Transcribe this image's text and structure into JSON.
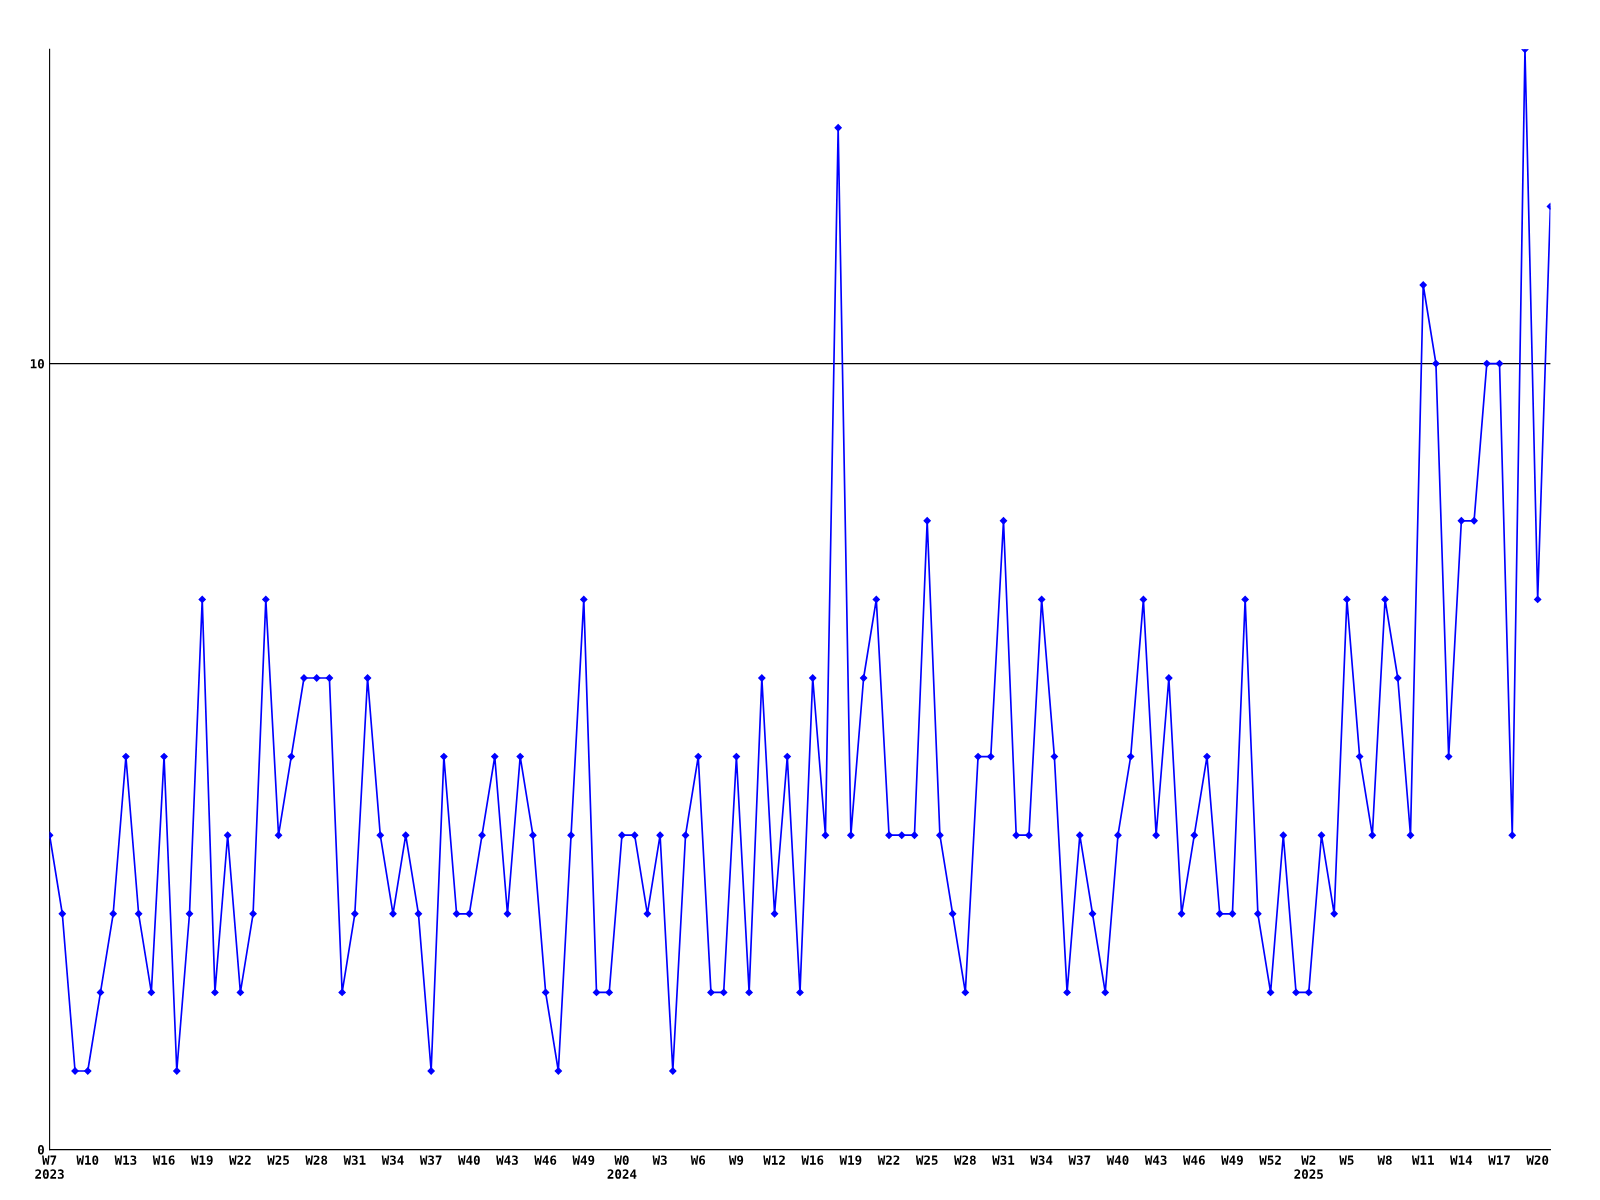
{
  "chart_data": {
    "type": "line",
    "categories": [
      "W7\n2023",
      null,
      null,
      "W10",
      null,
      null,
      "W13",
      null,
      null,
      "W16",
      null,
      null,
      "W19",
      null,
      null,
      "W22",
      null,
      null,
      "W25",
      null,
      null,
      "W28",
      null,
      null,
      "W31",
      null,
      null,
      "W34",
      null,
      null,
      "W37",
      null,
      null,
      "W40",
      null,
      null,
      "W43",
      null,
      null,
      "W46",
      null,
      null,
      "W49",
      null,
      null,
      "W0\n2024",
      null,
      null,
      "W3",
      null,
      null,
      "W6",
      null,
      null,
      "W9",
      null,
      null,
      "W12",
      null,
      null,
      "W16",
      null,
      null,
      "W19",
      null,
      null,
      "W22",
      null,
      null,
      "W25",
      null,
      null,
      "W28",
      null,
      null,
      "W31",
      null,
      null,
      "W34",
      null,
      null,
      "W37",
      null,
      null,
      "W40",
      null,
      null,
      "W43",
      null,
      null,
      "W46",
      null,
      null,
      "W49",
      null,
      null,
      "W52",
      null,
      null,
      "W2\n2025",
      null,
      null,
      "W5",
      null,
      null,
      "W8",
      null,
      null,
      "W11",
      null,
      null,
      "W14",
      null,
      null,
      "W17",
      null,
      null,
      "W20",
      null
    ],
    "series": [
      {
        "color": "#0000ff",
        "values": [
          4,
          3,
          1,
          1,
          2,
          3,
          5,
          3,
          2,
          5,
          1,
          3,
          7,
          2,
          4,
          2,
          3,
          7,
          4,
          5,
          6,
          6,
          6,
          2,
          3,
          6,
          4,
          3,
          4,
          3,
          1,
          5,
          3,
          3,
          4,
          5,
          3,
          5,
          4,
          2,
          1,
          4,
          7,
          2,
          2,
          4,
          4,
          3,
          4,
          1,
          4,
          5,
          2,
          2,
          5,
          2,
          6,
          3,
          5,
          2,
          6,
          4,
          13,
          4,
          6,
          7,
          4,
          4,
          4,
          8,
          4,
          3,
          2,
          5,
          5,
          8,
          4,
          4,
          7,
          5,
          2,
          4,
          3,
          2,
          4,
          5,
          7,
          4,
          6,
          3,
          4,
          5,
          3,
          3,
          7,
          3,
          2,
          4,
          2,
          2,
          4,
          3,
          7,
          5,
          4,
          7,
          6,
          4,
          11,
          10,
          5,
          8,
          8,
          10,
          10,
          4,
          14,
          7,
          12
        ]
      }
    ],
    "ylim": [
      0,
      14
    ],
    "yticks": [
      0,
      10
    ],
    "grid": "y",
    "marker": "diamond",
    "line_style": "solid"
  }
}
